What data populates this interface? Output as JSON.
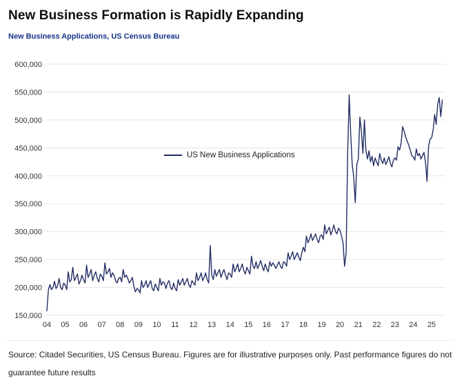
{
  "header": {
    "title": "New Business Formation is Rapidly Expanding",
    "subtitle": "New Business Applications, US Census Bureau"
  },
  "footer": {
    "source": "Source: Citadel Securities, US Census Bureau. Figures are for illustrative purposes only. Past performance figures do not guarantee future results"
  },
  "chart_data": {
    "type": "line",
    "title": "New Business Applications, US Census Bureau",
    "xlabel": "",
    "ylabel": "",
    "grid": "horizontal",
    "legend_position": "inside-left-middle",
    "ylim": [
      150000,
      600000
    ],
    "x_range": [
      2004,
      2025.75
    ],
    "x_start": 2004,
    "x_step": 0.0833333,
    "frequency": "monthly",
    "yticks": [
      {
        "value": 150000,
        "label": "150,000"
      },
      {
        "value": 200000,
        "label": "200,000"
      },
      {
        "value": 250000,
        "label": "250,000"
      },
      {
        "value": 300000,
        "label": "300,000"
      },
      {
        "value": 350000,
        "label": "350,000"
      },
      {
        "value": 400000,
        "label": "400,000"
      },
      {
        "value": 450000,
        "label": "450,000"
      },
      {
        "value": 500000,
        "label": "500,000"
      },
      {
        "value": 550000,
        "label": "550,000"
      },
      {
        "value": 600000,
        "label": "600,000"
      }
    ],
    "xticks": [
      {
        "value": 2004,
        "label": "04"
      },
      {
        "value": 2005,
        "label": "05"
      },
      {
        "value": 2006,
        "label": "06"
      },
      {
        "value": 2007,
        "label": "07"
      },
      {
        "value": 2008,
        "label": "08"
      },
      {
        "value": 2009,
        "label": "09"
      },
      {
        "value": 2010,
        "label": "10"
      },
      {
        "value": 2011,
        "label": "11"
      },
      {
        "value": 2012,
        "label": "12"
      },
      {
        "value": 2013,
        "label": "13"
      },
      {
        "value": 2014,
        "label": "14"
      },
      {
        "value": 2015,
        "label": "15"
      },
      {
        "value": 2016,
        "label": "16"
      },
      {
        "value": 2017,
        "label": "17"
      },
      {
        "value": 2018,
        "label": "18"
      },
      {
        "value": 2019,
        "label": "19"
      },
      {
        "value": 2020,
        "label": "20"
      },
      {
        "value": 2021,
        "label": "21"
      },
      {
        "value": 2022,
        "label": "22"
      },
      {
        "value": 2023,
        "label": "23"
      },
      {
        "value": 2024,
        "label": "24"
      },
      {
        "value": 2025,
        "label": "25"
      }
    ],
    "series": [
      {
        "name": "US New Business Applications",
        "color": "#222d63",
        "values": [
          158000,
          196000,
          205000,
          196000,
          200000,
          211000,
          198000,
          203000,
          216000,
          200000,
          196000,
          208000,
          204000,
          196000,
          228000,
          210000,
          214000,
          236000,
          212000,
          218000,
          224000,
          206000,
          212000,
          222000,
          214000,
          208000,
          240000,
          218000,
          224000,
          232000,
          212000,
          222000,
          228000,
          216000,
          210000,
          224000,
          220000,
          212000,
          244000,
          224000,
          228000,
          234000,
          218000,
          226000,
          222000,
          212000,
          208000,
          216000,
          218000,
          210000,
          232000,
          218000,
          222000,
          216000,
          208000,
          212000,
          218000,
          202000,
          192000,
          198000,
          196000,
          190000,
          212000,
          200000,
          204000,
          212000,
          200000,
          206000,
          212000,
          198000,
          194000,
          206000,
          200000,
          194000,
          216000,
          204000,
          210000,
          208000,
          198000,
          208000,
          212000,
          200000,
          196000,
          208000,
          198000,
          194000,
          214000,
          204000,
          210000,
          216000,
          204000,
          210000,
          216000,
          204000,
          200000,
          212000,
          208000,
          204000,
          226000,
          212000,
          218000,
          226000,
          212000,
          218000,
          226000,
          214000,
          208000,
          275000,
          222000,
          214000,
          232000,
          220000,
          226000,
          232000,
          218000,
          226000,
          232000,
          222000,
          214000,
          226000,
          224000,
          218000,
          242000,
          228000,
          234000,
          242000,
          228000,
          234000,
          242000,
          230000,
          224000,
          236000,
          230000,
          224000,
          256000,
          238000,
          234000,
          246000,
          234000,
          240000,
          248000,
          238000,
          230000,
          242000,
          234000,
          228000,
          246000,
          238000,
          244000,
          240000,
          234000,
          240000,
          246000,
          238000,
          234000,
          246000,
          244000,
          238000,
          262000,
          250000,
          256000,
          264000,
          250000,
          256000,
          262000,
          254000,
          248000,
          262000,
          272000,
          264000,
          292000,
          280000,
          286000,
          296000,
          284000,
          290000,
          296000,
          286000,
          280000,
          292000,
          294000,
          286000,
          312000,
          296000,
          302000,
          308000,
          294000,
          302000,
          312000,
          300000,
          296000,
          306000,
          302000,
          292000,
          280000,
          238000,
          262000,
          440000,
          545000,
          475000,
          420000,
          398000,
          352000,
          420000,
          430000,
          505000,
          480000,
          440000,
          500000,
          445000,
          430000,
          445000,
          425000,
          435000,
          418000,
          432000,
          425000,
          418000,
          440000,
          428000,
          422000,
          432000,
          420000,
          426000,
          434000,
          422000,
          416000,
          428000,
          432000,
          428000,
          452000,
          446000,
          458000,
          488000,
          480000,
          470000,
          462000,
          455000,
          446000,
          436000,
          434000,
          428000,
          448000,
          436000,
          440000,
          430000,
          436000,
          442000,
          424000,
          390000,
          452000,
          466000,
          468000,
          482000,
          510000,
          492000,
          528000,
          540000,
          506000,
          536000
        ]
      }
    ]
  }
}
